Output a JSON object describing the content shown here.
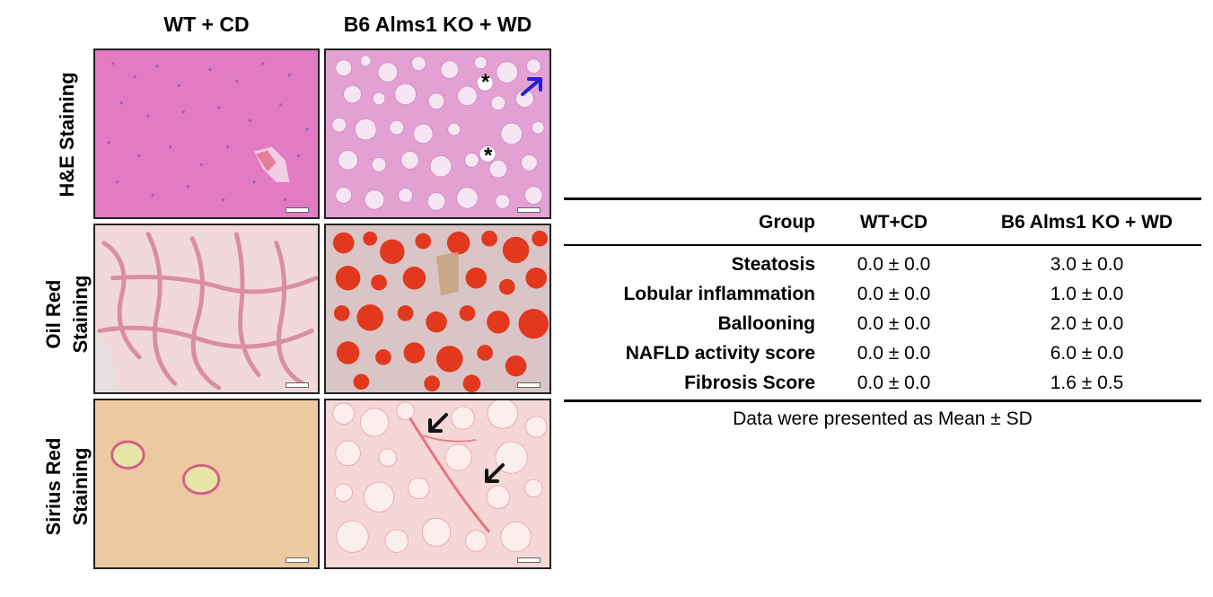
{
  "figure": {
    "columns": [
      "WT + CD",
      "B6 Alms1 KO + WD"
    ],
    "rows": [
      {
        "label_lines": [
          "H&E Staining"
        ]
      },
      {
        "label_lines": [
          "Oil Red",
          "Staining"
        ]
      },
      {
        "label_lines": [
          "Sirius Red",
          "Staining"
        ]
      }
    ],
    "annotations": {
      "asterisk": "*"
    }
  },
  "table": {
    "headers": [
      "Group",
      "WT+CD",
      "B6 Alms1 KO + WD"
    ],
    "rows": [
      {
        "name": "Steatosis",
        "wt": "0.0 ± 0.0",
        "ko": "3.0 ± 0.0"
      },
      {
        "name": "Lobular inflammation",
        "wt": "0.0 ± 0.0",
        "ko": "1.0 ± 0.0"
      },
      {
        "name": "Ballooning",
        "wt": "0.0 ± 0.0",
        "ko": "2.0 ± 0.0"
      },
      {
        "name": "NAFLD activity score",
        "wt": "0.0 ± 0.0",
        "ko": "6.0 ± 0.0"
      },
      {
        "name": "Fibrosis Score",
        "wt": "0.0 ± 0.0",
        "ko": "1.6 ± 0.5"
      }
    ],
    "footnote": "Data were presented as Mean ± SD"
  },
  "colors": {
    "he_bg": "#e27bc4",
    "he_vac": "#f6e6f3",
    "oil_bg": "#f0d8dd",
    "oil_fat": "#e2381d",
    "sirius_wt_bg": "#ecc9a0",
    "sirius_ko_bg": "#f4d7d6",
    "arrow_blue": "#1f20d8"
  }
}
